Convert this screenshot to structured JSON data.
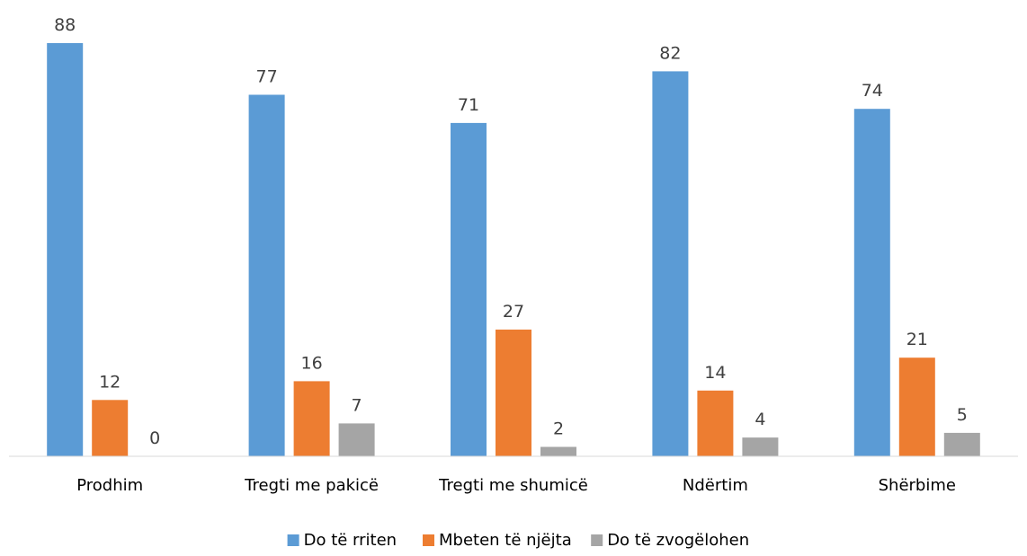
{
  "chart_data": {
    "type": "bar",
    "title": "",
    "xlabel": "",
    "ylabel": "",
    "ylim": [
      0,
      95
    ],
    "grid": false,
    "legend_position": "bottom",
    "categories": [
      "Prodhim",
      "Tregti me pakicë",
      "Tregti me shumicë",
      "Ndërtim",
      "Shërbime"
    ],
    "series": [
      {
        "name": "Do të rriten",
        "color": "#5b9bd5",
        "values": [
          88,
          77,
          71,
          82,
          74
        ]
      },
      {
        "name": "Mbeten të njëjta",
        "color": "#ed7d31",
        "values": [
          12,
          16,
          27,
          14,
          21
        ]
      },
      {
        "name": "Do të zvogëlohen",
        "color": "#a5a5a5",
        "values": [
          0,
          7,
          2,
          4,
          5
        ]
      }
    ]
  }
}
